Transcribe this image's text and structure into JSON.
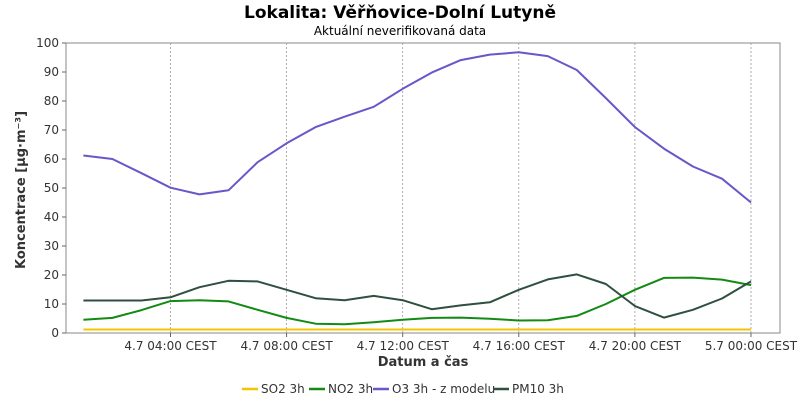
{
  "chart_data": {
    "type": "line",
    "title": "Lokalita: Věřňovice-Dolní Lutyně",
    "subtitle": "Aktuální neverifikovaná data",
    "xlabel": "Datum a čas",
    "ylabel": "Koncentrace [µg·m⁻³]",
    "ylim": [
      0,
      100
    ],
    "yticks": [
      0,
      10,
      20,
      30,
      40,
      50,
      60,
      70,
      80,
      90,
      100
    ],
    "xlim": [
      0.4,
      25.0
    ],
    "xticks": [
      {
        "pos": 4,
        "label": "4.7 04:00 CEST"
      },
      {
        "pos": 8,
        "label": "4.7 08:00 CEST"
      },
      {
        "pos": 12,
        "label": "4.7 12:00 CEST"
      },
      {
        "pos": 16,
        "label": "4.7 16:00 CEST"
      },
      {
        "pos": 20,
        "label": "4.7 20:00 CEST"
      },
      {
        "pos": 24,
        "label": "5.7 00:00 CEST"
      }
    ],
    "grid": true,
    "legend_position": "bottom",
    "x": [
      1,
      2,
      3,
      4,
      5,
      6,
      7,
      8,
      9,
      10,
      11,
      12,
      13,
      14,
      15,
      16,
      17,
      18,
      19,
      20,
      21,
      22,
      23,
      24
    ],
    "series": [
      {
        "name": "SO2 3h",
        "color": "#f5c400",
        "values": [
          1.2,
          1.2,
          1.2,
          1.2,
          1.2,
          1.2,
          1.2,
          1.2,
          1.2,
          1.2,
          1.2,
          1.2,
          1.2,
          1.2,
          1.2,
          1.2,
          1.2,
          1.2,
          1.2,
          1.2,
          1.2,
          1.2,
          1.2,
          1.2
        ]
      },
      {
        "name": "NO2 3h",
        "color": "#138a13",
        "values": [
          4.6,
          5.2,
          7.9,
          11.0,
          11.3,
          10.9,
          8.0,
          5.2,
          3.2,
          3.0,
          3.7,
          4.6,
          5.2,
          5.3,
          4.9,
          4.3,
          4.4,
          5.9,
          10.0,
          14.9,
          19.0,
          19.1,
          18.4,
          16.5
        ]
      },
      {
        "name": "O3 3h - z modelu",
        "color": "#6a55c9",
        "values": [
          61.2,
          60.0,
          55.1,
          50.1,
          47.8,
          49.2,
          58.9,
          65.4,
          71.0,
          74.6,
          78.0,
          84.2,
          89.8,
          94.1,
          96.0,
          96.8,
          95.5,
          90.7,
          81.0,
          71.0,
          63.6,
          57.4,
          53.2,
          45.0
        ]
      },
      {
        "name": "PM10 3h",
        "color": "#2f4f3f",
        "values": [
          11.2,
          11.2,
          11.2,
          12.3,
          15.8,
          18.0,
          17.8,
          14.9,
          12.0,
          11.3,
          12.8,
          11.3,
          8.2,
          9.5,
          10.6,
          14.9,
          18.5,
          20.2,
          16.9,
          9.3,
          5.3,
          8.0,
          11.9,
          17.8
        ]
      }
    ]
  }
}
